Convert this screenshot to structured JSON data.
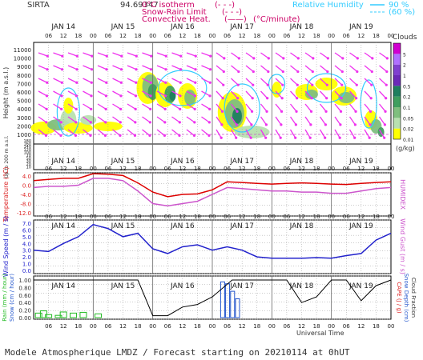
{
  "header": {
    "station": "SIRTA",
    "coords": "94.69347",
    "legend": [
      {
        "label": "0°C isotherm",
        "sample": "(- - -)",
        "color": "#cc0066"
      },
      {
        "label": "Snow-Rain Limit",
        "sample": "(- - -)",
        "color": "#cc0066"
      },
      {
        "label": "Convective Heat.",
        "sample": "(——)",
        "unit": "(°C/minute)",
        "color": "#cc0066"
      }
    ],
    "humidity_label": "Relative Humidity",
    "humidity_levels": [
      "90 %",
      "(60 %)"
    ],
    "humidity_color": "#33ccff"
  },
  "footer": {
    "text": "Modele Atmospherique LMDZ / Forecast starting on 20210114 at 0hUT",
    "x_axis_title": "Universal Time"
  },
  "chart_data": [
    {
      "type": "heatmap",
      "name": "clouds",
      "days": [
        "JAN 14",
        "JAN 15",
        "JAN 16",
        "JAN 17",
        "JAN 18",
        "JAN 19"
      ],
      "hour_ticks": [
        "06",
        "12",
        "18",
        "00"
      ],
      "ylabel": "Height (m a.s.l.)",
      "y_ticks_upper": [
        1000,
        2000,
        3000,
        4000,
        5000,
        6000,
        7000,
        8000,
        9000,
        10000,
        11000
      ],
      "y_ticks_lower": [
        10,
        20,
        30,
        50,
        70,
        100,
        120,
        140,
        160,
        180
      ],
      "lower_label": "Up to 200 m a.s.l.",
      "colorbar_title": "Clouds",
      "colorbar_unit": "(g/kg)",
      "colorbar_levels": [
        "0.01",
        "0.02",
        "0.05",
        "0.1",
        "0.2",
        "0.5",
        "1",
        "2",
        "5"
      ],
      "colorbar_colors": [
        "#ffff00",
        "#b8e0b0",
        "#7fbf7f",
        "#3f9f5f",
        "#1f7f5f",
        "#6b2ab8",
        "#8040d0",
        "#b070ff",
        "#d000d0"
      ]
    },
    {
      "type": "line",
      "name": "temperature",
      "ylabel": "Temperature (°C)",
      "right_label": "HUMIDEX",
      "ylim": [
        -12.0,
        4.0
      ],
      "y_ticks": [
        "4.0",
        "0.0",
        "-4.0",
        "-8.0",
        "-12.0"
      ],
      "x_hours": [
        0,
        6,
        12,
        18,
        24,
        30,
        36,
        42,
        48,
        54,
        60,
        66,
        72,
        78,
        84,
        90,
        96,
        102,
        108,
        114,
        120,
        126,
        132,
        138,
        144
      ],
      "series": [
        {
          "color": "#dd0000",
          "values": [
            2.0,
            2.5,
            3.0,
            3.0,
            5.0,
            4.8,
            4.2,
            1.0,
            -3.0,
            -5.0,
            -4.0,
            -3.8,
            -2.0,
            1.5,
            1.2,
            0.8,
            0.5,
            0.8,
            1.0,
            0.8,
            0.5,
            0.3,
            0.8,
            1.2,
            1.5
          ]
        },
        {
          "color": "#cc55cc",
          "values": [
            -1.0,
            -0.5,
            -0.5,
            0.0,
            3.0,
            3.0,
            2.0,
            -2.5,
            -8.0,
            -9.0,
            -8.0,
            -7.0,
            -4.0,
            -1.0,
            -1.5,
            -2.0,
            -2.5,
            -2.5,
            -3.0,
            -3.0,
            -3.5,
            -3.5,
            -2.5,
            -1.5,
            -1.0
          ]
        }
      ]
    },
    {
      "type": "line",
      "name": "wind",
      "ylabel": "Wind Speed (m / s)",
      "right_label": "Wind Gust (m / s)",
      "ylim": [
        0.0,
        7.0
      ],
      "y_ticks": [
        "7.0",
        "6.0",
        "5.0",
        "4.0",
        "3.0",
        "2.0",
        "1.0",
        "0.0"
      ],
      "x_hours": [
        0,
        6,
        12,
        18,
        24,
        30,
        36,
        42,
        48,
        54,
        60,
        66,
        72,
        78,
        84,
        90,
        96,
        102,
        108,
        114,
        120,
        126,
        132,
        138,
        144
      ],
      "series": [
        {
          "color": "#2222cc",
          "values": [
            3.0,
            2.8,
            4.0,
            5.0,
            6.8,
            6.2,
            5.0,
            5.5,
            3.2,
            2.5,
            3.5,
            3.8,
            3.0,
            3.5,
            3.0,
            2.0,
            1.8,
            1.8,
            1.8,
            1.9,
            1.8,
            2.2,
            2.5,
            4.5,
            5.5
          ]
        }
      ]
    },
    {
      "type": "bar",
      "name": "precipitation",
      "ylabel": "Rain (mm / hour)",
      "ylabel2": "Snow (cm / hour)",
      "right_label": "CAPE (J / g)",
      "right_label2": "Snow Depth (cm)",
      "right_label3": "Cloud Fraction",
      "ylim": [
        0.0,
        1.0
      ],
      "y_ticks": [
        "1.00",
        "0.80",
        "0.60",
        "0.40",
        "0.20",
        "0.00"
      ],
      "rain": {
        "color": "#22bb22",
        "x_hours": [
          2,
          4,
          6,
          10,
          12,
          16,
          20,
          26
        ],
        "values": [
          0.12,
          0.18,
          0.08,
          0.06,
          0.15,
          0.12,
          0.14,
          0.1
        ]
      },
      "snow": {
        "color": "#2255cc",
        "x_hours": [
          76,
          78,
          80,
          82
        ],
        "values": [
          0.95,
          0.9,
          0.7,
          0.5
        ]
      },
      "cloud_fraction": {
        "color": "#000000",
        "x_hours": [
          0,
          42,
          48,
          54,
          60,
          66,
          72,
          80,
          90,
          96,
          102,
          108,
          114,
          120,
          126,
          132,
          138,
          144
        ],
        "values": [
          1.0,
          1.0,
          0.05,
          0.05,
          0.28,
          0.35,
          0.55,
          1.0,
          1.0,
          1.0,
          1.0,
          0.4,
          0.55,
          1.0,
          1.0,
          0.45,
          0.85,
          1.0
        ]
      }
    }
  ]
}
